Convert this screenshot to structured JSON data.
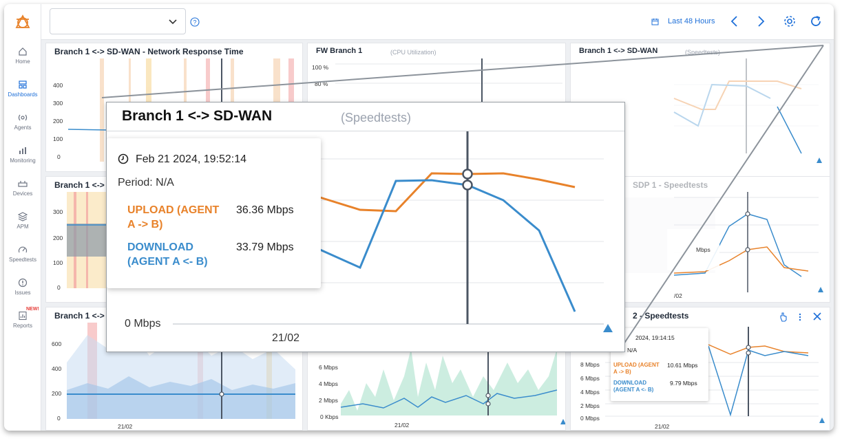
{
  "header": {
    "time_range": "Last 48 Hours"
  },
  "sidebar": {
    "items": [
      {
        "label": "Home"
      },
      {
        "label": "Dashboards"
      },
      {
        "label": "Agents"
      },
      {
        "label": "Monitoring"
      },
      {
        "label": "Devices"
      },
      {
        "label": "APM"
      },
      {
        "label": "Speedtests"
      },
      {
        "label": "Issues"
      },
      {
        "label": "Reports",
        "badge": "NEW!"
      }
    ]
  },
  "panels": {
    "response_time": {
      "title": "Branch 1 <-> SD-WAN - Network Response Time",
      "y_ticks": [
        "400",
        "300",
        "200",
        "100",
        "0"
      ]
    },
    "fw_cpu": {
      "title": "FW Branch 1",
      "subtitle": "(CPU Utilization)",
      "y_ticks": [
        "100 %",
        "80 %"
      ]
    },
    "speedtests_top": {
      "title": "Branch 1 <-> SD-WAN",
      "subtitle": "(Speedtests)"
    },
    "mid_left": {
      "title": "Branch 1 <->",
      "y_ticks": [
        "300",
        "200",
        "100",
        "0"
      ]
    },
    "mid_right": {
      "title": "SDP 1 - Speedtests",
      "tooltip_value": "Mbps",
      "x_label": "/02"
    },
    "bottom_left": {
      "title": "Branch 1 <->",
      "y_ticks": [
        "600",
        "400",
        "200",
        "0"
      ],
      "x_label": "21/02"
    },
    "bottom_mid": {
      "y_ticks": [
        "6 Mbps",
        "4 Mbps",
        "2 Mbps",
        "0 Kbps"
      ],
      "x_label": "21/02"
    },
    "bottom_right": {
      "title": "2 - Speedtests",
      "y_ticks": [
        "8 Mbps",
        "6 Mbps",
        "4 Mbps",
        "2 Mbps",
        "0 Mbps"
      ],
      "x_label": "21/02",
      "tooltip": {
        "date": "2024, 19:14:15",
        "period": "N/A",
        "upload_label_1": "UPLOAD (AGENT",
        "upload_label_2": "A -> B)",
        "upload_value": "10.61 Mbps",
        "download_label_1": "DOWNLOAD",
        "download_label_2": "(AGENT A <- B)",
        "download_value": "9.79 Mbps"
      }
    }
  },
  "callout": {
    "title": "Branch 1 <-> SD-WAN",
    "subtitle": "(Speedtests)",
    "tooltip": {
      "date": "Feb 21 2024, 19:52:14",
      "period": "Period: N/A",
      "upload_label_1": "UPLOAD (AGENT",
      "upload_label_2": "A -> B)",
      "upload_value": "36.36 Mbps",
      "download_label_1": "DOWNLOAD",
      "download_label_2": "(AGENT A <- B)",
      "download_value": "33.79 Mbps"
    },
    "y_label": "0 Mbps",
    "x_label": "21/02"
  },
  "colors": {
    "accent": "#1d6fd8",
    "upload": "#e8822a",
    "download": "#3a8ccc",
    "alert_orange": "#f4c9a0",
    "alert_red": "#f2a0a0"
  }
}
